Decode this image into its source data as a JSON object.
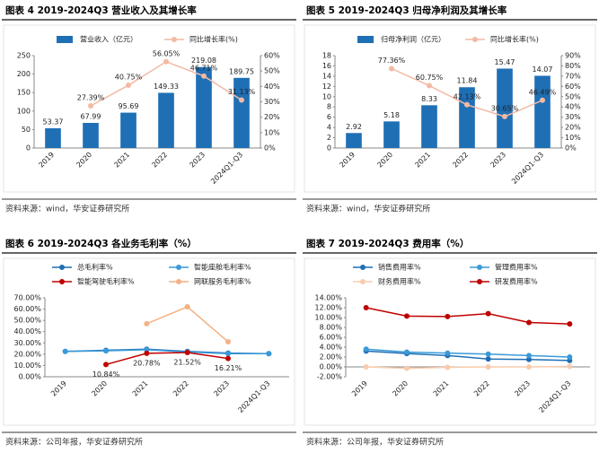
{
  "chart_data": [
    {
      "type": "bar",
      "title": "图表 4 2019-2024Q3 营业收入及其增长率",
      "source": "资料来源：wind，华安证券研究所",
      "legend": "top",
      "categories": [
        "2019",
        "2020",
        "2021",
        "2022",
        "2023",
        "2024Q1-Q3"
      ],
      "series": [
        {
          "name": "营业收入（亿元）",
          "type": "bar",
          "color": "#1f6fb5",
          "values": [
            53.37,
            67.99,
            95.69,
            149.33,
            219.08,
            189.75
          ]
        },
        {
          "name": "同比增长率(%)",
          "type": "line",
          "axis": "y2",
          "color": "#f4b9a3",
          "values": [
            null,
            27.39,
            40.75,
            56.05,
            46.71,
            31.13
          ],
          "value_labels": [
            null,
            "27.39%",
            "40.75%",
            "56.05%",
            "46.71%",
            "31.13%"
          ]
        }
      ],
      "ylim": [
        0,
        250
      ],
      "yticks": [
        0,
        50,
        100,
        150,
        200,
        250
      ],
      "y2lim": [
        0,
        60
      ],
      "y2ticks": [
        {
          "value": 0,
          "label": "0%"
        },
        {
          "value": 10,
          "label": "10%"
        },
        {
          "value": 20,
          "label": "20%"
        },
        {
          "value": 30,
          "label": "30%"
        },
        {
          "value": 40,
          "label": "40%"
        },
        {
          "value": 50,
          "label": "50%"
        },
        {
          "value": 60,
          "label": "60%"
        }
      ],
      "grid": false
    },
    {
      "type": "bar",
      "title": "图表 5 2019-2024Q3 归母净利润及其增长率",
      "source": "资料来源：wind，华安证券研究所",
      "legend": "top",
      "categories": [
        "2019",
        "2020",
        "2021",
        "2022",
        "2023",
        "2024Q1-Q3"
      ],
      "series": [
        {
          "name": "归母净利润（亿元）",
          "type": "bar",
          "color": "#1f6fb5",
          "values": [
            2.92,
            5.18,
            8.33,
            11.84,
            15.47,
            14.07
          ]
        },
        {
          "name": "同比增长率(%)",
          "type": "line",
          "axis": "y2",
          "color": "#f4b9a3",
          "values": [
            null,
            77.36,
            60.75,
            42.13,
            30.65,
            46.49
          ],
          "value_labels": [
            null,
            "77.36%",
            "60.75%",
            "42.13%",
            "30.65%",
            "46.49%"
          ]
        }
      ],
      "ylim": [
        0,
        18
      ],
      "yticks": [
        0,
        2,
        4,
        6,
        8,
        10,
        12,
        14,
        16,
        18
      ],
      "y2lim": [
        0,
        90
      ],
      "y2ticks": [
        {
          "value": 0,
          "label": "0%"
        },
        {
          "value": 10,
          "label": "10%"
        },
        {
          "value": 20,
          "label": "20%"
        },
        {
          "value": 30,
          "label": "30%"
        },
        {
          "value": 40,
          "label": "40%"
        },
        {
          "value": 50,
          "label": "50%"
        },
        {
          "value": 60,
          "label": "60%"
        },
        {
          "value": 70,
          "label": "70%"
        },
        {
          "value": 80,
          "label": "80%"
        },
        {
          "value": 90,
          "label": "90%"
        }
      ],
      "grid": false
    },
    {
      "type": "line",
      "title": "图表 6 2019-2024Q3 各业务毛利率（%）",
      "source": "资料来源：公司年报，华安证券研究所",
      "legend": "top",
      "categories": [
        "2019",
        "2020",
        "2021",
        "2022",
        "2023",
        "2024Q1-Q3"
      ],
      "series": [
        {
          "name": "总毛利率%",
          "type": "line",
          "color": "#1f6fb5",
          "values": [
            22.5,
            23.5,
            24.5,
            22.5,
            21,
            20.5
          ]
        },
        {
          "name": "智能座舱毛利率%",
          "type": "line",
          "color": "#3a9ad9",
          "values": [
            22.5,
            23,
            24,
            22,
            20.5,
            20.5
          ]
        },
        {
          "name": "智能驾驶毛利率%",
          "type": "line",
          "color": "#c00000",
          "values": [
            null,
            10.84,
            20.78,
            21.52,
            16.21,
            null
          ],
          "value_labels": [
            null,
            "10.84%",
            "20.78%",
            "21.52%",
            "16.21%",
            null
          ]
        },
        {
          "name": "网联服务毛利率%",
          "type": "line",
          "color": "#f4b183",
          "values": [
            null,
            null,
            47,
            62,
            31,
            null
          ]
        }
      ],
      "ylim": [
        0,
        70
      ],
      "yticks": [
        {
          "value": 0,
          "label": "0.00%"
        },
        {
          "value": 10,
          "label": "10.00%"
        },
        {
          "value": 20,
          "label": "20.00%"
        },
        {
          "value": 30,
          "label": "30.00%"
        },
        {
          "value": 40,
          "label": "40.00%"
        },
        {
          "value": 50,
          "label": "50.00%"
        },
        {
          "value": 60,
          "label": "60.00%"
        },
        {
          "value": 70,
          "label": "70.00%"
        }
      ],
      "grid": false
    },
    {
      "type": "line",
      "title": "图表 7 2019-2024Q3 费用率（%）",
      "source": "资料来源：公司年报，华安证券研究所",
      "legend": "top",
      "categories": [
        "2019",
        "2020",
        "2021",
        "2022",
        "2023",
        "2024Q1-Q3"
      ],
      "series": [
        {
          "name": "销售费用率%",
          "type": "line",
          "color": "#1f6fb5",
          "values": [
            3.2,
            2.7,
            2.3,
            1.6,
            1.5,
            1.3
          ]
        },
        {
          "name": "管理费用率%",
          "type": "line",
          "color": "#3a9ad9",
          "values": [
            3.6,
            3.0,
            2.8,
            2.6,
            2.3,
            2.0
          ]
        },
        {
          "name": "财务费用率%",
          "type": "line",
          "color": "#f8cbad",
          "values": [
            0,
            -0.3,
            -0.1,
            0,
            0,
            0.1
          ]
        },
        {
          "name": "研发费用率%",
          "type": "line",
          "color": "#c00000",
          "values": [
            12.0,
            10.3,
            10.2,
            10.8,
            9.0,
            8.7
          ]
        }
      ],
      "ylim": [
        -2,
        14
      ],
      "yticks": [
        {
          "value": -2,
          "label": "-2.00%"
        },
        {
          "value": 0,
          "label": "0.00%"
        },
        {
          "value": 2,
          "label": "2.00%"
        },
        {
          "value": 4,
          "label": "4.00%"
        },
        {
          "value": 6,
          "label": "6.00%"
        },
        {
          "value": 8,
          "label": "8.00%"
        },
        {
          "value": 10,
          "label": "10.00%"
        },
        {
          "value": 12,
          "label": "12.00%"
        },
        {
          "value": 14,
          "label": "14.00%"
        }
      ],
      "grid": false
    }
  ]
}
